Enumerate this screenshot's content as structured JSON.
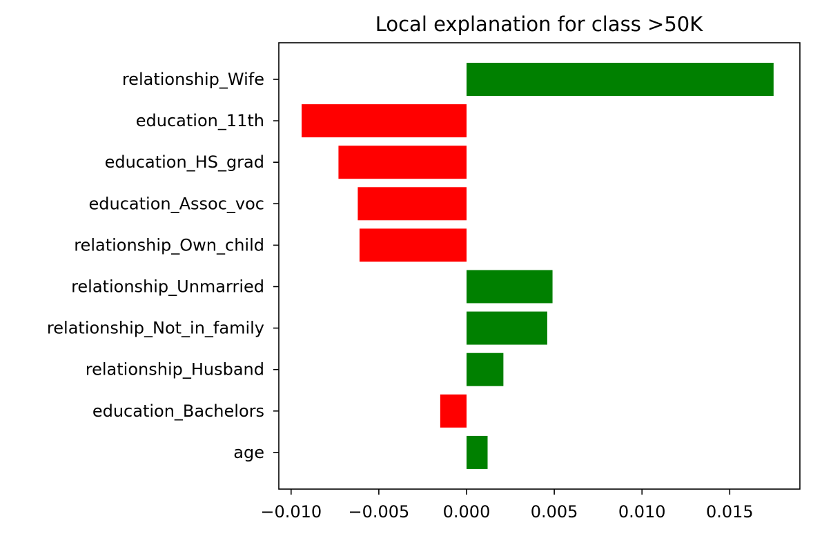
{
  "chart_data": {
    "type": "bar",
    "orientation": "horizontal",
    "title": "Local explanation for class >50K",
    "xlabel": "",
    "ylabel": "",
    "categories": [
      "relationship_Wife",
      "education_11th",
      "education_HS_grad",
      "education_Assoc_voc",
      "relationship_Own_child",
      "relationship_Unmarried",
      "relationship_Not_in_family",
      "relationship_Husband",
      "education_Bachelors",
      "age"
    ],
    "values": [
      0.0175,
      -0.0094,
      -0.0073,
      -0.0062,
      -0.0061,
      0.0049,
      0.0046,
      0.0021,
      -0.0015,
      0.0012
    ],
    "xlim": [
      -0.0107,
      0.019
    ],
    "xticks": [
      -0.01,
      -0.005,
      0.0,
      0.005,
      0.01,
      0.015
    ],
    "xtick_labels": [
      "−0.010",
      "−0.005",
      "0.000",
      "0.005",
      "0.010",
      "0.015"
    ],
    "positive_color": "#008000",
    "negative_color": "#ff0000",
    "grid": false,
    "legend": "none"
  }
}
